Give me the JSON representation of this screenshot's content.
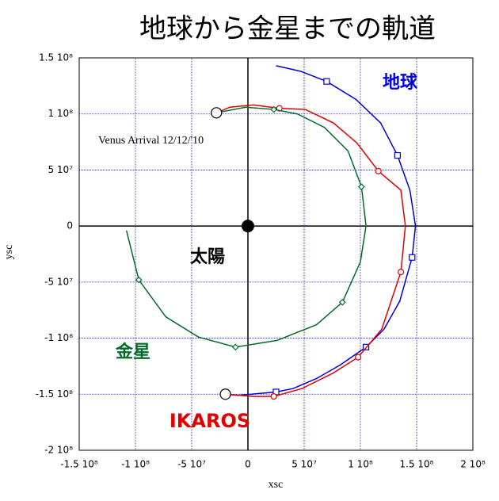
{
  "chart_data": {
    "type": "line",
    "title": "地球から金星までの軌道",
    "x_label": "xsc",
    "y_label": "ysc",
    "xlim": [
      -150000000,
      200000000
    ],
    "ylim": [
      -200000000,
      150000000
    ],
    "xticks": [
      {
        "value": -150000000,
        "label": "-1.5 10⁸"
      },
      {
        "value": -100000000,
        "label": "-1 10⁸"
      },
      {
        "value": -50000000,
        "label": "-5 10⁷"
      },
      0,
      {
        "value": 50000000,
        "label": "5 10⁷"
      },
      {
        "value": 100000000,
        "label": "1 10⁸"
      },
      {
        "value": 150000000,
        "label": "1.5 10⁸"
      },
      {
        "value": 200000000,
        "label": "2 10⁸"
      }
    ],
    "yticks": [
      {
        "value": -200000000,
        "label": "-2 10⁸"
      },
      {
        "value": -150000000,
        "label": "-1.5 10⁸"
      },
      {
        "value": -100000000,
        "label": "-1 10⁸"
      },
      {
        "value": -50000000,
        "label": "-5 10⁷"
      },
      0,
      {
        "value": 50000000,
        "label": "5 10⁷"
      },
      {
        "value": 100000000,
        "label": "1 10⁸"
      },
      {
        "value": 150000000,
        "label": "1.5 10⁸"
      }
    ],
    "grid": true,
    "series": [
      {
        "name": "地球",
        "color": "#0000dd",
        "marker": "square",
        "x": [
          25000000,
          47000000,
          70000000,
          96000000,
          118000000,
          133000000,
          144000000,
          149000000,
          146000000,
          135000000,
          121000000,
          105000000,
          82000000,
          61000000,
          40000000,
          25000000,
          -9000000,
          -20000000
        ],
        "y": [
          143000000,
          138000000,
          129000000,
          113000000,
          92000000,
          63000000,
          32000000,
          0,
          -28000000,
          -67000000,
          -92000000,
          -108000000,
          -124000000,
          -136000000,
          -145000000,
          -148000000,
          -151000000,
          -150000000
        ],
        "marker_x": [
          70000000,
          133000000,
          146000000,
          105000000,
          25000000
        ],
        "marker_y": [
          129000000,
          63000000,
          -28000000,
          -108000000,
          -148000000
        ]
      },
      {
        "name": "IKAROS",
        "color": "#e00000",
        "marker": "circle",
        "x": [
          -20000000,
          5000000,
          23000000,
          48000000,
          76000000,
          98000000,
          119000000,
          136000000,
          140000000,
          136000000,
          116000000,
          97000000,
          76000000,
          51000000,
          28000000,
          5000000,
          -16000000,
          -28000000
        ],
        "y": [
          -150000000,
          -152000000,
          -152000000,
          -145000000,
          -131000000,
          -117000000,
          -92000000,
          -41000000,
          0,
          32000000,
          49000000,
          74000000,
          92000000,
          104000000,
          105000000,
          108000000,
          106000000,
          101000000
        ],
        "marker_x": [
          23000000,
          98000000,
          136000000,
          116000000,
          28000000
        ],
        "marker_y": [
          -152000000,
          -117000000,
          -41000000,
          49000000,
          105000000
        ]
      },
      {
        "name": "金星",
        "color": "#006b2a",
        "marker": "diamond",
        "x": [
          -108000000,
          -97000000,
          -73000000,
          -44000000,
          -11000000,
          26000000,
          61000000,
          84000000,
          100000000,
          105000000,
          101000000,
          89000000,
          68000000,
          44000000,
          23000000,
          -2000000,
          -28000000
        ],
        "y": [
          -4000000,
          -48000000,
          -81000000,
          -99000000,
          -108000000,
          -102000000,
          -88000000,
          -68000000,
          -32000000,
          0,
          35000000,
          67000000,
          88000000,
          100000000,
          104000000,
          106000000,
          101000000
        ],
        "marker_x": [
          -97000000,
          -11000000,
          84000000,
          101000000,
          23000000
        ],
        "marker_y": [
          -48000000,
          -108000000,
          -68000000,
          35000000,
          104000000
        ]
      }
    ],
    "endpoints": {
      "x": [
        -28000000,
        -20000000
      ],
      "y": [
        101000000,
        -150000000
      ]
    },
    "sun": {
      "label": "太陽",
      "x": 0,
      "y": 0
    },
    "annotations": [
      "Venus Arrival 12/12/'10"
    ]
  }
}
